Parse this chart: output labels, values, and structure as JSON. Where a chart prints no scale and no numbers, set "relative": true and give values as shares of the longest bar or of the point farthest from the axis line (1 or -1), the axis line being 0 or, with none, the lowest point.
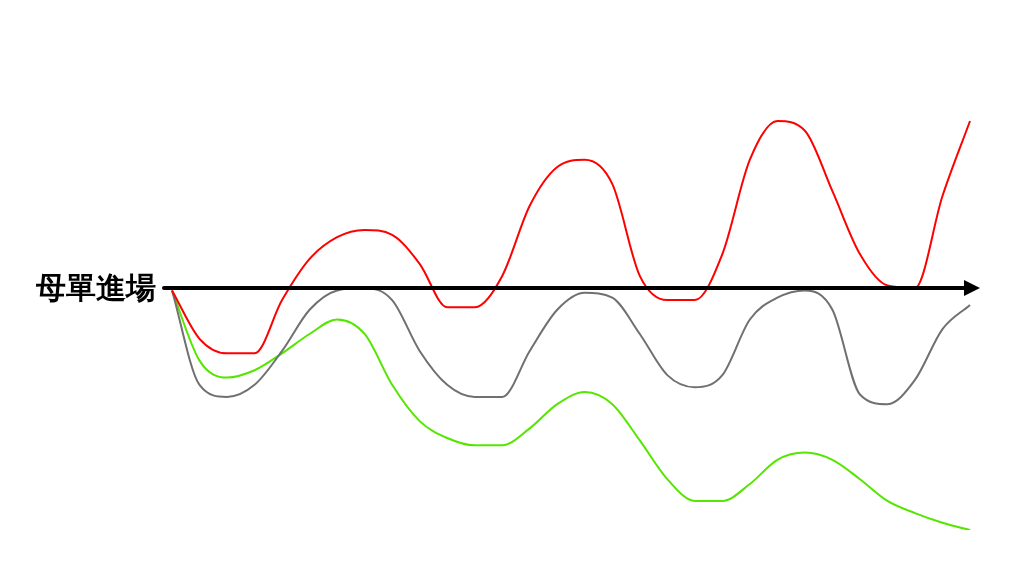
{
  "chart_data": {
    "type": "line",
    "relative": true,
    "categories": [
      null,
      null,
      null,
      null,
      null,
      null,
      null,
      null,
      null,
      null,
      null,
      null,
      null,
      null,
      null,
      null,
      null,
      null,
      null,
      null,
      null,
      null,
      null,
      null,
      null,
      null,
      null,
      null,
      null,
      null
    ],
    "series": [
      {
        "color": "#ff0000",
        "values": [
          -0.01,
          -0.21,
          -0.27,
          -0.27,
          -0.05,
          0.12,
          0.21,
          0.24,
          0.22,
          0.1,
          -0.08,
          -0.08,
          0.05,
          0.34,
          0.5,
          0.53,
          0.43,
          0.05,
          -0.05,
          -0.05,
          0.14,
          0.53,
          0.69,
          0.65,
          0.4,
          0.14,
          0.01,
          0.0,
          0.38,
          0.69
        ]
      },
      {
        "color": "#707070",
        "values": [
          -0.01,
          -0.4,
          -0.45,
          -0.4,
          -0.26,
          -0.09,
          -0.01,
          0.0,
          -0.05,
          -0.26,
          -0.4,
          -0.45,
          -0.45,
          -0.26,
          -0.09,
          -0.02,
          -0.04,
          -0.19,
          -0.36,
          -0.41,
          -0.36,
          -0.13,
          -0.04,
          -0.01,
          -0.09,
          -0.44,
          -0.48,
          -0.38,
          -0.17,
          -0.07
        ]
      },
      {
        "color": "#55e600",
        "values": [
          -0.01,
          -0.3,
          -0.37,
          -0.34,
          -0.27,
          -0.19,
          -0.13,
          -0.19,
          -0.4,
          -0.55,
          -0.62,
          -0.65,
          -0.65,
          -0.58,
          -0.48,
          -0.43,
          -0.48,
          -0.63,
          -0.79,
          -0.88,
          -0.88,
          -0.81,
          -0.71,
          -0.68,
          -0.71,
          -0.79,
          -0.88,
          -0.93,
          -0.97,
          -1.0
        ]
      }
    ],
    "ref_lines": [
      {
        "axis": "y",
        "value": 0,
        "label": "母單進場",
        "color": "#000000"
      }
    ]
  }
}
